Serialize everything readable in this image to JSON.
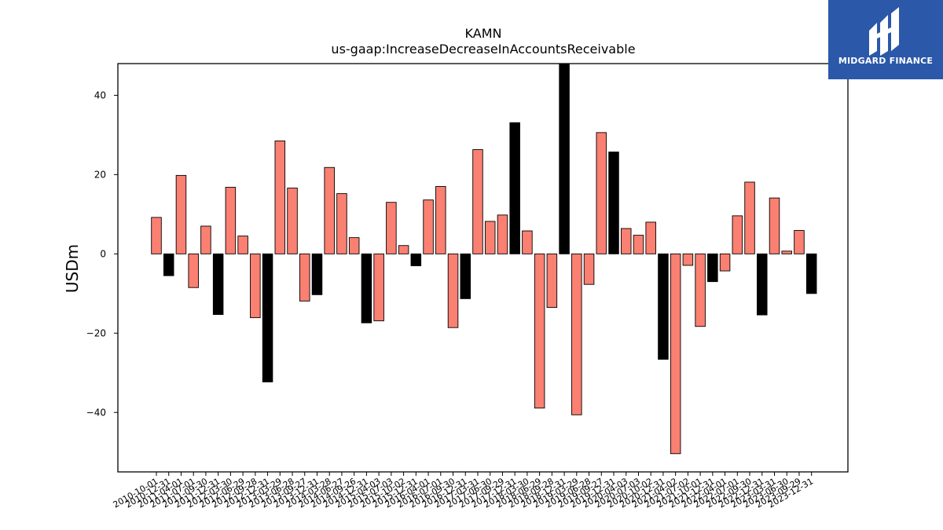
{
  "chart_data": {
    "type": "bar",
    "title": "KAMN",
    "subtitle": "us-gaap:IncreaseDecreaseInAccountsReceivable",
    "xlabel": "",
    "ylabel": "USDm",
    "ylim": [
      -55,
      48
    ],
    "yticks": [
      -40,
      -20,
      0,
      20,
      40
    ],
    "grid": false,
    "categories": [
      "2010-10-01",
      "2010-12-31",
      "2011-04-01",
      "2011-07-01",
      "2011-09-30",
      "2011-12-31",
      "2012-03-30",
      "2012-06-29",
      "2012-09-28",
      "2012-12-31",
      "2013-03-29",
      "2013-06-28",
      "2013-09-27",
      "2013-12-31",
      "2014-03-28",
      "2014-06-27",
      "2014-09-26",
      "2014-12-31",
      "2015-04-03",
      "2015-07-03",
      "2015-10-02",
      "2015-12-31",
      "2016-04-01",
      "2016-07-01",
      "2016-09-30",
      "2016-12-31",
      "2017-03-31",
      "2017-06-30",
      "2017-09-29",
      "2017-12-31",
      "2018-03-30",
      "2018-06-29",
      "2018-09-28",
      "2018-12-31",
      "2019-03-29",
      "2019-06-28",
      "2019-09-27",
      "2019-12-31",
      "2020-04-03",
      "2020-07-03",
      "2020-10-02",
      "2020-12-31",
      "2021-04-02",
      "2021-07-02",
      "2021-10-01",
      "2021-12-31",
      "2022-04-01",
      "2022-07-01",
      "2022-09-30",
      "2022-12-31",
      "2023-03-31",
      "2023-06-30",
      "2023-09-29",
      "2023-12-31"
    ],
    "values": [
      9.2,
      -5.5,
      19.8,
      -8.5,
      7.0,
      -15.3,
      16.8,
      4.5,
      -16.1,
      -32.3,
      28.5,
      16.6,
      -11.9,
      -10.3,
      21.8,
      15.2,
      4.1,
      -17.4,
      -16.9,
      13.0,
      2.1,
      -3.0,
      13.6,
      17.0,
      -18.6,
      -11.3,
      26.3,
      8.2,
      9.8,
      33.1,
      5.8,
      -38.9,
      -13.5,
      48.0,
      -40.6,
      -7.7,
      30.6,
      25.7,
      6.4,
      4.7,
      8.0,
      -26.6,
      -50.4,
      -2.9,
      -18.3,
      -7.0,
      -4.3,
      9.6,
      18.1,
      -15.4,
      14.1,
      0.7,
      5.9,
      -10.0
    ],
    "bar_colors": [
      "#fa8072",
      "#000000",
      "#fa8072",
      "#fa8072",
      "#fa8072",
      "#000000",
      "#fa8072",
      "#fa8072",
      "#fa8072",
      "#000000",
      "#fa8072",
      "#fa8072",
      "#fa8072",
      "#000000",
      "#fa8072",
      "#fa8072",
      "#fa8072",
      "#000000",
      "#fa8072",
      "#fa8072",
      "#fa8072",
      "#000000",
      "#fa8072",
      "#fa8072",
      "#fa8072",
      "#000000",
      "#fa8072",
      "#fa8072",
      "#fa8072",
      "#000000",
      "#fa8072",
      "#fa8072",
      "#fa8072",
      "#000000",
      "#fa8072",
      "#fa8072",
      "#fa8072",
      "#000000",
      "#fa8072",
      "#fa8072",
      "#fa8072",
      "#000000",
      "#fa8072",
      "#fa8072",
      "#fa8072",
      "#000000",
      "#fa8072",
      "#fa8072",
      "#fa8072",
      "#000000",
      "#fa8072",
      "#fa8072",
      "#fa8072",
      "#000000"
    ]
  },
  "logo": {
    "text": "MIDGARD FINANCE",
    "background": "#2b58a8"
  }
}
